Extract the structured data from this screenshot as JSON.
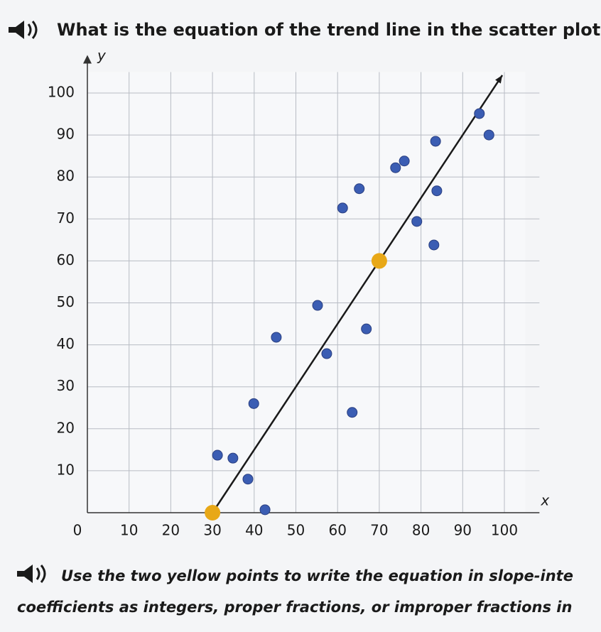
{
  "question": "What is the equation of the trend line in the scatter plot?",
  "instruction": [
    "Use the two yellow points to write the equation in slope-inte",
    "coefficients as integers, proper fractions, or improper fractions in"
  ],
  "chart_data": {
    "type": "scatter",
    "x_label": "x",
    "y_label": "y",
    "xlim": [
      0,
      105
    ],
    "ylim": [
      0,
      105
    ],
    "xticks": [
      0,
      10,
      20,
      30,
      40,
      50,
      60,
      70,
      80,
      90,
      100
    ],
    "yticks": [
      10,
      20,
      30,
      40,
      50,
      60,
      70,
      80,
      90,
      100
    ],
    "grid": true,
    "series": [
      {
        "color": "#3b5db3",
        "x": [
          31.2,
          34.9,
          38.5,
          42.6,
          39.9,
          45.3,
          55.2,
          57.4,
          61.2,
          65.2,
          66.9,
          63.5,
          73.9,
          76,
          79,
          83.8,
          83.5,
          83.1,
          94,
          96.3
        ],
        "values": [
          13.7,
          13,
          8,
          0.7,
          26,
          41.8,
          49.4,
          37.9,
          72.6,
          77.2,
          43.8,
          23.9,
          82.2,
          83.8,
          69.4,
          76.7,
          88.5,
          63.8,
          95.1,
          90
        ]
      },
      {
        "color": "#e8a817",
        "x": [
          30,
          70
        ],
        "values": [
          0,
          60
        ]
      }
    ],
    "trend_line": {
      "color": "#1a1a1a",
      "x": [
        30,
        99.5
      ],
      "values": [
        0,
        104.25
      ]
    }
  }
}
